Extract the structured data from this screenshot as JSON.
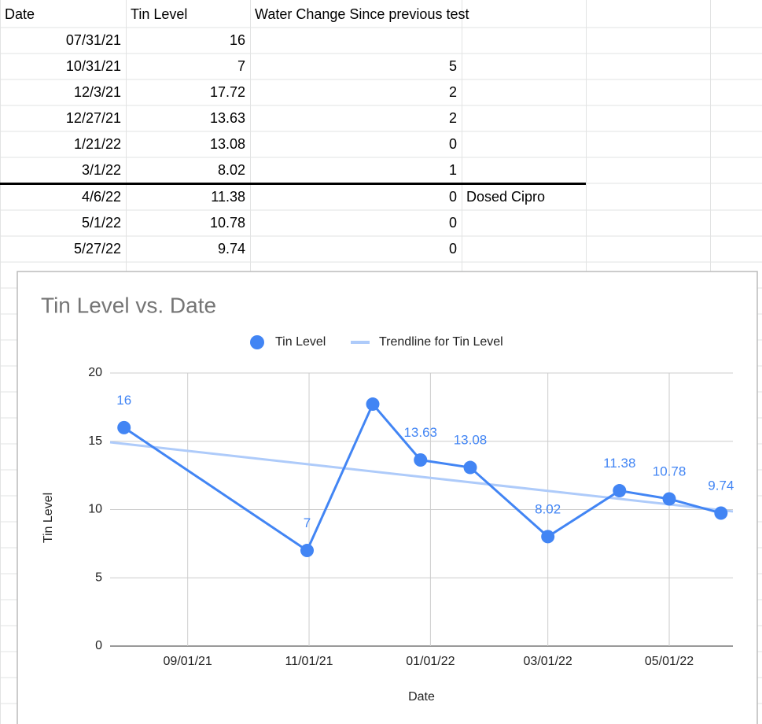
{
  "sheet": {
    "header": [
      "Date",
      "Tin Level",
      "Water Change Since previous test"
    ],
    "rows": [
      [
        "07/31/21",
        16,
        null,
        null
      ],
      [
        "10/31/21",
        7,
        5,
        null
      ],
      [
        "12/3/21",
        17.72,
        2,
        null
      ],
      [
        "12/27/21",
        13.63,
        2,
        null
      ],
      [
        "1/21/22",
        13.08,
        0,
        null
      ],
      [
        "3/1/22",
        8.02,
        1,
        null
      ],
      [
        "4/6/22",
        11.38,
        0,
        "Dosed Cipro"
      ],
      [
        "5/1/22",
        10.78,
        0,
        null
      ],
      [
        "5/27/22",
        9.74,
        0,
        null
      ]
    ]
  },
  "chart_data": {
    "type": "line",
    "title": "Tin Level vs. Date",
    "x_label": "Date",
    "y_label": "Tin Level",
    "x": [
      "07/31/21",
      "10/31/21",
      "12/03/21",
      "12/27/21",
      "01/21/22",
      "03/01/22",
      "04/06/22",
      "05/01/22",
      "05/27/22"
    ],
    "series": [
      {
        "name": "Tin Level",
        "color": "#4285f4",
        "values": [
          16,
          7,
          17.72,
          13.63,
          13.08,
          8.02,
          11.38,
          10.78,
          9.74
        ],
        "value_labels": [
          "16",
          "7",
          null,
          "13.63",
          "13.08",
          "8.02",
          "11.38",
          "10.78",
          "9.74"
        ]
      }
    ],
    "trendline": {
      "name": "Trendline for Tin Level",
      "color": "#aecbfa",
      "x": [
        "07/24/21",
        "06/02/22"
      ],
      "values": [
        14.93,
        9.86
      ]
    },
    "xlim": [
      "07/24/21",
      "06/02/22"
    ],
    "xticks": [
      "09/01/21",
      "11/01/21",
      "01/01/22",
      "03/01/22",
      "05/01/22"
    ],
    "ylim": [
      0,
      20
    ],
    "yticks": [
      0,
      5,
      10,
      15,
      20
    ],
    "grid": true,
    "legend": "top"
  }
}
